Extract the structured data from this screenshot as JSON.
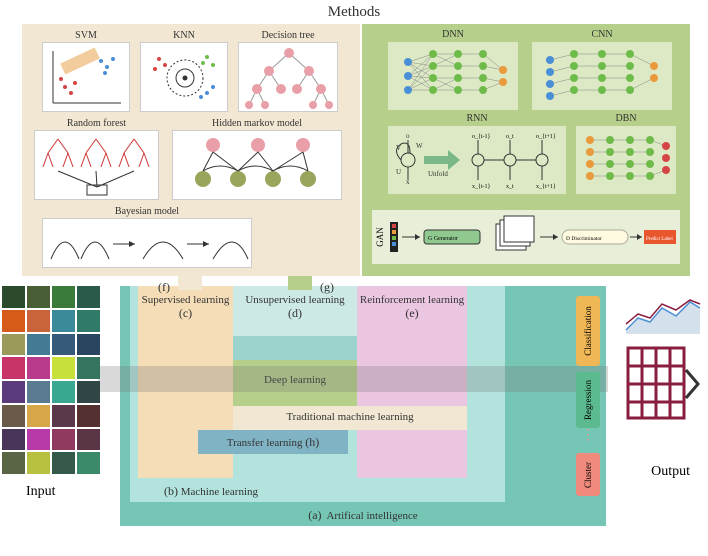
{
  "title": "Methods",
  "ml_methods": {
    "svm": "SVM",
    "knn": "KNN",
    "decision_tree": "Decision tree",
    "random_forest": "Random forest",
    "hmm": "Hidden markov model",
    "bayesian": "Bayesian model"
  },
  "dl_methods": {
    "dnn": "DNN",
    "cnn": "CNN",
    "rnn": "RNN",
    "dbn": "DBN",
    "gan": "GAN",
    "unfold": "Unfold"
  },
  "hierarchy": {
    "ai": "Artifical intelligence",
    "ml": "Machine learning",
    "supervised": "Supervised learning",
    "unsupervised": "Unsupervised learning",
    "reinforcement": "Reinforcement learning",
    "deep": "Deep learning",
    "traditional": "Traditional machine learning",
    "transfer": "Transfer learning"
  },
  "letters": {
    "a": "(a)",
    "b": "(b)",
    "c": "(c)",
    "d": "(d)",
    "e": "(e)",
    "f": "(f)",
    "g": "(g)",
    "h": "(h)"
  },
  "io": {
    "input": "Input",
    "output": "Output"
  },
  "outputs": {
    "classification": "Classification",
    "regression": "Regression",
    "cluster": "Cluster"
  },
  "colors": {
    "ml_panel": "#f1e7d3",
    "dl_panel": "#b6d08b",
    "dl_sub": "#dce9c4",
    "ai": "#76c6b6",
    "ml_box": "#b2e4dd",
    "supervised": "#f5ddb7",
    "unsupervised": "#9dd3cd",
    "reinforcement": "#eac6e0",
    "deep": "#b6d08b",
    "traditional": "#f1e7d3",
    "transfer": "#80b4c4",
    "class_box": "#f0b757",
    "reg_box": "#5bbb8e",
    "cluster_box": "#f08a7c",
    "output_grid": "#8a1e3e",
    "node_green": "#6fbb4a",
    "node_blue": "#4a8fd6",
    "node_orange": "#e89a3c",
    "node_red": "#d64545",
    "node_pink": "#e99fa8",
    "node_olive": "#9aa55c"
  },
  "input_grid_colors": [
    "#2c4a2c",
    "#4a5e35",
    "#3a7a3a",
    "#2a5a4a",
    "#d65a1a",
    "#c9643a",
    "#3a8a9a",
    "#307a6a",
    "#9a9a5a",
    "#457a95",
    "#355a7a",
    "#2a4560",
    "#c8336a",
    "#b83a8a",
    "#c8e03a",
    "#357560",
    "#5a3a7a",
    "#5a7a90",
    "#3aa890",
    "#304545",
    "#6a5a4a",
    "#d6a84a",
    "#5a3a4a",
    "#553030",
    "#4a355a",
    "#b83aa8",
    "#903a60",
    "#5a3545",
    "#5a6545",
    "#b8c040",
    "#355a4a",
    "#3a8a6a"
  ],
  "nn_node_size": 7,
  "font": {
    "title": 15,
    "panel": 10,
    "label": 11,
    "io": 14
  }
}
